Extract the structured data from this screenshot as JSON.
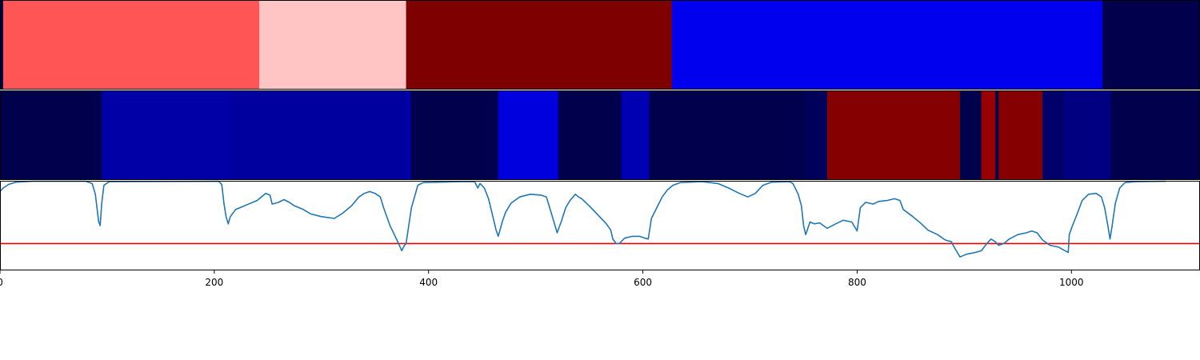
{
  "chart_data": {
    "type": "heatmap",
    "x_range": [
      0,
      1120
    ],
    "x_ticks": [
      {
        "value": 0,
        "label": "0"
      },
      {
        "value": 200,
        "label": "200"
      },
      {
        "value": 400,
        "label": "400"
      },
      {
        "value": 600,
        "label": "600"
      },
      {
        "value": 800,
        "label": "800"
      },
      {
        "value": 1000,
        "label": "1000"
      }
    ],
    "top_band": {
      "segments": [
        {
          "start": 0,
          "end": 3,
          "color": "#00004c"
        },
        {
          "start": 3,
          "end": 242,
          "color": "#ff5555"
        },
        {
          "start": 242,
          "end": 379,
          "color": "#ffc4c4"
        },
        {
          "start": 379,
          "end": 627,
          "color": "#7f0000"
        },
        {
          "start": 627,
          "end": 1029,
          "color": "#0000ee"
        },
        {
          "start": 1029,
          "end": 1120,
          "color": "#00004c"
        }
      ]
    },
    "middle_band": {
      "segments": [
        {
          "start": 0,
          "end": 95,
          "color": "#00004c"
        },
        {
          "start": 95,
          "end": 215,
          "color": "#0000a6"
        },
        {
          "start": 215,
          "end": 380,
          "color": "#00009e"
        },
        {
          "start": 380,
          "end": 383,
          "color": "#0000b6"
        },
        {
          "start": 383,
          "end": 465,
          "color": "#00004c"
        },
        {
          "start": 465,
          "end": 521,
          "color": "#0000de"
        },
        {
          "start": 521,
          "end": 580,
          "color": "#00004c"
        },
        {
          "start": 580,
          "end": 606,
          "color": "#0000b2"
        },
        {
          "start": 606,
          "end": 751,
          "color": "#00004c"
        },
        {
          "start": 751,
          "end": 772,
          "color": "#00005a"
        },
        {
          "start": 772,
          "end": 896,
          "color": "#850000"
        },
        {
          "start": 896,
          "end": 916,
          "color": "#00004c"
        },
        {
          "start": 916,
          "end": 929,
          "color": "#9b0000"
        },
        {
          "start": 929,
          "end": 932,
          "color": "#00004c"
        },
        {
          "start": 932,
          "end": 973,
          "color": "#850000"
        },
        {
          "start": 973,
          "end": 993,
          "color": "#000068"
        },
        {
          "start": 993,
          "end": 1037,
          "color": "#000080"
        },
        {
          "start": 1037,
          "end": 1120,
          "color": "#00004c"
        }
      ]
    },
    "signal": {
      "y_range": [
        0,
        1
      ],
      "threshold": 0.3,
      "threshold_color": "#ee0000",
      "line_color": "#1f77b4",
      "points": [
        [
          0,
          0.88
        ],
        [
          3,
          0.92
        ],
        [
          8,
          0.96
        ],
        [
          15,
          0.985
        ],
        [
          30,
          0.995
        ],
        [
          80,
          0.995
        ],
        [
          86,
          0.97
        ],
        [
          89,
          0.85
        ],
        [
          92,
          0.55
        ],
        [
          93.5,
          0.5
        ],
        [
          95,
          0.75
        ],
        [
          97,
          0.95
        ],
        [
          102,
          0.99
        ],
        [
          204,
          0.995
        ],
        [
          207,
          0.96
        ],
        [
          209,
          0.75
        ],
        [
          211,
          0.6
        ],
        [
          213,
          0.52
        ],
        [
          215,
          0.6
        ],
        [
          220,
          0.68
        ],
        [
          224,
          0.7
        ],
        [
          230,
          0.73
        ],
        [
          240,
          0.78
        ],
        [
          248,
          0.86
        ],
        [
          252,
          0.84
        ],
        [
          254,
          0.74
        ],
        [
          260,
          0.76
        ],
        [
          265,
          0.79
        ],
        [
          270,
          0.76
        ],
        [
          275,
          0.72
        ],
        [
          283,
          0.68
        ],
        [
          290,
          0.63
        ],
        [
          300,
          0.6
        ],
        [
          312,
          0.58
        ],
        [
          320,
          0.64
        ],
        [
          328,
          0.72
        ],
        [
          335,
          0.82
        ],
        [
          340,
          0.86
        ],
        [
          345,
          0.88
        ],
        [
          350,
          0.86
        ],
        [
          355,
          0.82
        ],
        [
          358,
          0.7
        ],
        [
          364,
          0.5
        ],
        [
          368,
          0.4
        ],
        [
          372,
          0.3
        ],
        [
          375,
          0.22
        ],
        [
          377,
          0.27
        ],
        [
          379,
          0.3
        ],
        [
          384,
          0.7
        ],
        [
          390,
          0.95
        ],
        [
          395,
          0.98
        ],
        [
          430,
          0.99
        ],
        [
          443,
          0.99
        ],
        [
          446,
          0.92
        ],
        [
          448,
          0.97
        ],
        [
          452,
          0.92
        ],
        [
          456,
          0.8
        ],
        [
          460,
          0.6
        ],
        [
          463,
          0.45
        ],
        [
          465,
          0.38
        ],
        [
          469,
          0.55
        ],
        [
          472,
          0.65
        ],
        [
          477,
          0.75
        ],
        [
          485,
          0.82
        ],
        [
          495,
          0.85
        ],
        [
          505,
          0.84
        ],
        [
          510,
          0.82
        ],
        [
          513,
          0.7
        ],
        [
          518,
          0.5
        ],
        [
          520,
          0.42
        ],
        [
          524,
          0.55
        ],
        [
          528,
          0.7
        ],
        [
          532,
          0.78
        ],
        [
          537,
          0.85
        ],
        [
          540,
          0.82
        ],
        [
          543,
          0.8
        ],
        [
          550,
          0.72
        ],
        [
          558,
          0.62
        ],
        [
          566,
          0.52
        ],
        [
          570,
          0.45
        ],
        [
          572,
          0.35
        ],
        [
          575,
          0.3
        ],
        [
          578,
          0.3
        ],
        [
          583,
          0.36
        ],
        [
          590,
          0.38
        ],
        [
          597,
          0.38
        ],
        [
          602,
          0.36
        ],
        [
          605,
          0.35
        ],
        [
          608,
          0.58
        ],
        [
          613,
          0.7
        ],
        [
          618,
          0.82
        ],
        [
          623,
          0.9
        ],
        [
          628,
          0.95
        ],
        [
          635,
          0.98
        ],
        [
          655,
          0.99
        ],
        [
          670,
          0.97
        ],
        [
          680,
          0.92
        ],
        [
          690,
          0.86
        ],
        [
          698,
          0.82
        ],
        [
          705,
          0.86
        ],
        [
          712,
          0.95
        ],
        [
          720,
          0.985
        ],
        [
          737,
          0.99
        ],
        [
          740,
          0.97
        ],
        [
          745,
          0.85
        ],
        [
          748,
          0.72
        ],
        [
          750,
          0.5
        ],
        [
          752,
          0.4
        ],
        [
          756,
          0.54
        ],
        [
          760,
          0.52
        ],
        [
          765,
          0.53
        ],
        [
          772,
          0.47
        ],
        [
          780,
          0.52
        ],
        [
          787,
          0.56
        ],
        [
          795,
          0.54
        ],
        [
          800,
          0.44
        ],
        [
          803,
          0.7
        ],
        [
          808,
          0.76
        ],
        [
          815,
          0.74
        ],
        [
          820,
          0.77
        ],
        [
          828,
          0.78
        ],
        [
          835,
          0.8
        ],
        [
          840,
          0.78
        ],
        [
          843,
          0.68
        ],
        [
          852,
          0.6
        ],
        [
          860,
          0.52
        ],
        [
          866,
          0.45
        ],
        [
          875,
          0.4
        ],
        [
          882,
          0.34
        ],
        [
          888,
          0.32
        ],
        [
          891,
          0.25
        ],
        [
          896,
          0.15
        ],
        [
          902,
          0.18
        ],
        [
          910,
          0.2
        ],
        [
          916,
          0.22
        ],
        [
          921,
          0.3
        ],
        [
          925,
          0.35
        ],
        [
          929,
          0.32
        ],
        [
          932,
          0.28
        ],
        [
          937,
          0.3
        ],
        [
          942,
          0.35
        ],
        [
          950,
          0.4
        ],
        [
          958,
          0.42
        ],
        [
          963,
          0.44
        ],
        [
          968,
          0.42
        ],
        [
          973,
          0.34
        ],
        [
          980,
          0.28
        ],
        [
          988,
          0.26
        ],
        [
          994,
          0.22
        ],
        [
          997,
          0.2
        ],
        [
          998,
          0.4
        ],
        [
          1001,
          0.5
        ],
        [
          1005,
          0.62
        ],
        [
          1010,
          0.78
        ],
        [
          1016,
          0.85
        ],
        [
          1023,
          0.86
        ],
        [
          1028,
          0.82
        ],
        [
          1031,
          0.7
        ],
        [
          1034,
          0.5
        ],
        [
          1036,
          0.35
        ],
        [
          1038,
          0.5
        ],
        [
          1041,
          0.75
        ],
        [
          1045,
          0.92
        ],
        [
          1050,
          0.98
        ],
        [
          1060,
          0.99
        ],
        [
          1088,
          0.995
        ]
      ]
    }
  }
}
